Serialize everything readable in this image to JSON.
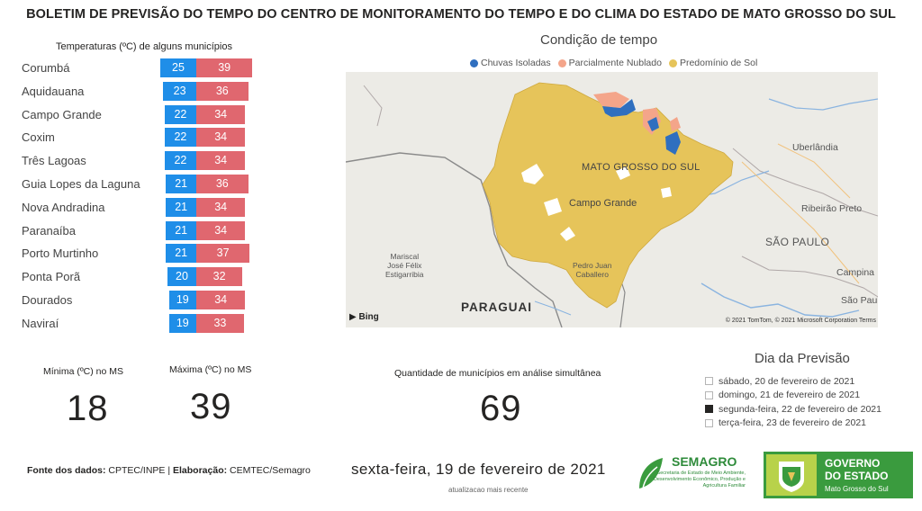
{
  "title": "BOLETIM DE PREVISÃO DO TEMPO DO CENTRO DE MONITORAMENTO DO TEMPO E DO CLIMA DO ESTADO DE MATO GROSSO DO SUL",
  "temperatures": {
    "heading": "Temperaturas (ºC) de alguns municípios",
    "rows": [
      {
        "city": "Corumbá",
        "min": "25",
        "max": "39"
      },
      {
        "city": "Aquidauana",
        "min": "23",
        "max": "36"
      },
      {
        "city": "Campo Grande",
        "min": "22",
        "max": "34"
      },
      {
        "city": "Coxim",
        "min": "22",
        "max": "34"
      },
      {
        "city": "Três Lagoas",
        "min": "22",
        "max": "34"
      },
      {
        "city": "Guia Lopes da Laguna",
        "min": "21",
        "max": "36"
      },
      {
        "city": "Nova Andradina",
        "min": "21",
        "max": "34"
      },
      {
        "city": "Paranaíba",
        "min": "21",
        "max": "34"
      },
      {
        "city": "Porto Murtinho",
        "min": "21",
        "max": "37"
      },
      {
        "city": "Ponta Porã",
        "min": "20",
        "max": "32"
      },
      {
        "city": "Dourados",
        "min": "19",
        "max": "34"
      },
      {
        "city": "Naviraí",
        "min": "19",
        "max": "33"
      }
    ],
    "colors": {
      "min": "#1f8ee8",
      "max": "#e0676f"
    }
  },
  "map": {
    "title": "Condição de tempo",
    "legend": [
      {
        "label": "Chuvas Isoladas",
        "color": "#2f6fbf"
      },
      {
        "label": "Parcialmente Nublado",
        "color": "#f4a58a"
      },
      {
        "label": "Predomínio de Sol",
        "color": "#e6c45a"
      }
    ],
    "labels": {
      "state": "MATO GROSSO DO SUL",
      "campo_grande": "Campo Grande",
      "uberlandia": "Uberlândia",
      "ribeirao": "Ribeirão Preto",
      "sao_paulo_state": "SÃO PAULO",
      "campinas": "Campina",
      "sao_paulo": "São Paulo",
      "pedro_juan_1": "Pedro Juan",
      "pedro_juan_2": "Caballero",
      "mariscal_1": "Mariscal",
      "mariscal_2": "José Félix",
      "mariscal_3": "Estigarribia",
      "paraguai": "PARAGUAI",
      "bing": "Bing",
      "copyright": "© 2021 TomTom, © 2021 Microsoft Corporation Terms"
    }
  },
  "kpis": {
    "min_label": "Mínima (ºC) no MS",
    "min_value": "18",
    "max_label": "Máxima (ºC) no MS",
    "max_value": "39",
    "count_label": "Quantidade de municípios em análise simultânea",
    "count_value": "69"
  },
  "days": {
    "title": "Dia da Previsão",
    "items": [
      {
        "label": "sábado, 20 de fevereiro de 2021",
        "checked": false
      },
      {
        "label": "domingo, 21 de fevereiro de 2021",
        "checked": false
      },
      {
        "label": "segunda-feira, 22 de fevereiro de 2021",
        "checked": true
      },
      {
        "label": "terça-feira, 23 de fevereiro de 2021",
        "checked": false
      }
    ]
  },
  "footer": {
    "source_label": "Fonte dos dados:",
    "source_value": "CPTEC/INPE |",
    "elab_label": "Elaboração:",
    "elab_value": "CEMTEC/Semagro",
    "date": "sexta-feira, 19 de fevereiro de 2021",
    "updated": "atualizacao mais recente"
  },
  "logos": {
    "semagro_name": "SEMAGRO",
    "semagro_sub": "Secretaria de Estado de Meio Ambiente, Desenvolvimento Econômico, Produção e Agricultura Familiar",
    "gov_line1": "GOVERNO",
    "gov_line2": "DO ESTADO",
    "gov_line3": "Mato Grosso do Sul"
  }
}
